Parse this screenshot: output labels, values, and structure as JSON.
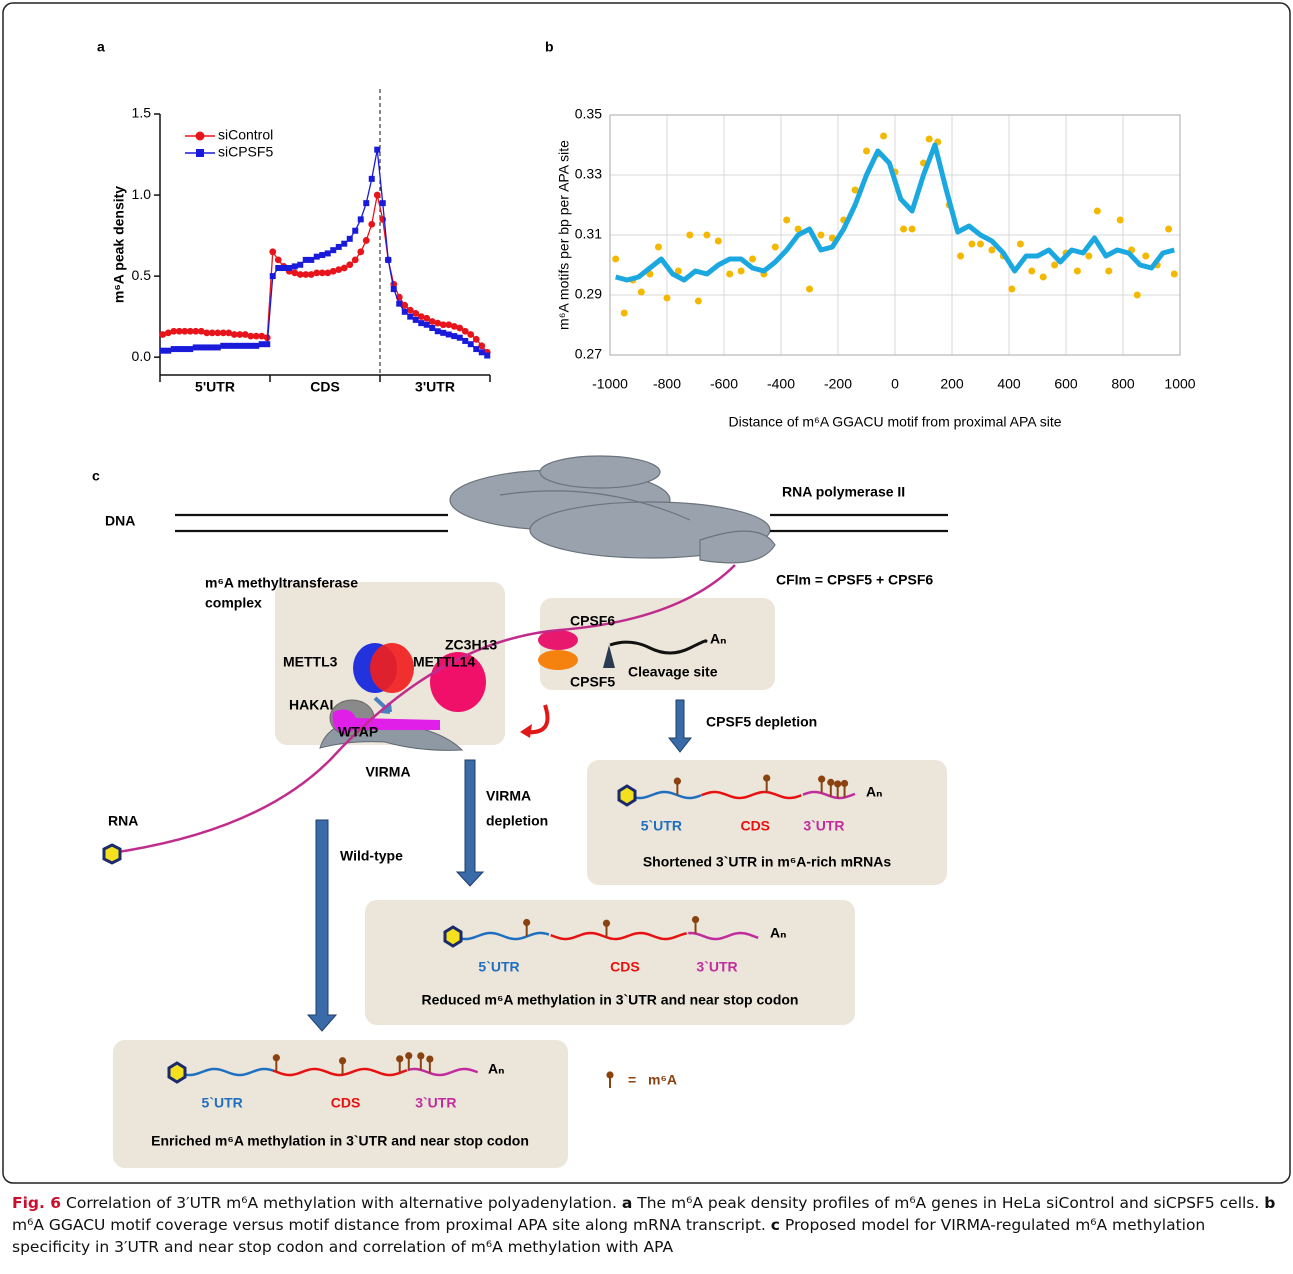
{
  "chart_data": [
    {
      "type": "line",
      "y_label": "m⁶A peak density",
      "regions": [
        "5'UTR",
        "CDS",
        "3'UTR"
      ],
      "ylim": [
        -0.11,
        1.5
      ],
      "yticks": [
        {
          "value": 0,
          "label": "0.0"
        },
        {
          "value": 0.5,
          "label": "0.5"
        },
        {
          "value": 1,
          "label": "1.0"
        },
        {
          "value": 1.5,
          "label": "1.5"
        }
      ],
      "legend": "upper left",
      "series": [
        {
          "name": "siControl",
          "color": "#e8141c",
          "marker": "circle",
          "values": [
            0.14,
            0.15,
            0.16,
            0.16,
            0.16,
            0.16,
            0.16,
            0.16,
            0.15,
            0.15,
            0.15,
            0.15,
            0.15,
            0.14,
            0.14,
            0.14,
            0.13,
            0.13,
            0.13,
            0.12,
            0.65,
            0.6,
            0.56,
            0.53,
            0.52,
            0.51,
            0.51,
            0.51,
            0.52,
            0.52,
            0.52,
            0.53,
            0.54,
            0.55,
            0.57,
            0.6,
            0.65,
            0.72,
            0.82,
            1.0,
            0.85,
            0.6,
            0.45,
            0.37,
            0.32,
            0.29,
            0.27,
            0.25,
            0.24,
            0.22,
            0.21,
            0.2,
            0.2,
            0.19,
            0.18,
            0.16,
            0.14,
            0.11,
            0.07,
            0.03
          ]
        },
        {
          "name": "siCPSF5",
          "color": "#1a1adb",
          "marker": "square",
          "values": [
            0.04,
            0.04,
            0.05,
            0.05,
            0.05,
            0.05,
            0.06,
            0.06,
            0.06,
            0.06,
            0.06,
            0.07,
            0.07,
            0.07,
            0.07,
            0.07,
            0.07,
            0.07,
            0.08,
            0.08,
            0.5,
            0.55,
            0.55,
            0.55,
            0.56,
            0.57,
            0.6,
            0.6,
            0.62,
            0.63,
            0.64,
            0.66,
            0.68,
            0.7,
            0.73,
            0.78,
            0.85,
            0.95,
            1.1,
            1.28,
            0.95,
            0.6,
            0.42,
            0.33,
            0.28,
            0.25,
            0.23,
            0.21,
            0.2,
            0.18,
            0.16,
            0.15,
            0.14,
            0.13,
            0.12,
            0.1,
            0.08,
            0.05,
            0.03,
            0.01
          ]
        }
      ]
    },
    {
      "type": "scatter",
      "x_label": "Distance of m⁶A GGACU motif from proximal APA site",
      "y_label": "m⁶A motifs per bp per APA site",
      "xlim": [
        -1000,
        1000
      ],
      "ylim": [
        0.27,
        0.35
      ],
      "xticks": [
        -1000,
        -800,
        -600,
        -400,
        -200,
        0,
        200,
        400,
        600,
        800,
        1000
      ],
      "yticks": [
        0.27,
        0.29,
        0.31,
        0.33,
        0.35
      ],
      "grid": true,
      "series": [
        {
          "color": "#f5b800",
          "style": "points",
          "x": [
            -980,
            -950,
            -920,
            -890,
            -860,
            -830,
            -800,
            -760,
            -720,
            -690,
            -660,
            -620,
            -580,
            -540,
            -500,
            -460,
            -420,
            -380,
            -340,
            -300,
            -260,
            -220,
            -180,
            -140,
            -100,
            -60,
            -40,
            0,
            30,
            60,
            100,
            120,
            150,
            190,
            230,
            270,
            300,
            340,
            380,
            410,
            440,
            480,
            520,
            560,
            600,
            640,
            680,
            710,
            750,
            790,
            830,
            850,
            880,
            920,
            960,
            980
          ],
          "values": [
            0.302,
            0.284,
            0.295,
            0.291,
            0.297,
            0.306,
            0.289,
            0.298,
            0.31,
            0.288,
            0.31,
            0.308,
            0.297,
            0.298,
            0.302,
            0.297,
            0.306,
            0.315,
            0.312,
            0.292,
            0.31,
            0.309,
            0.315,
            0.325,
            0.338,
            0.337,
            0.343,
            0.331,
            0.312,
            0.312,
            0.334,
            0.342,
            0.341,
            0.32,
            0.303,
            0.307,
            0.307,
            0.305,
            0.303,
            0.292,
            0.307,
            0.298,
            0.296,
            0.3,
            0.304,
            0.298,
            0.303,
            0.318,
            0.298,
            0.315,
            0.305,
            0.29,
            0.303,
            0.3,
            0.312,
            0.297
          ]
        },
        {
          "color": "#1ba8e0",
          "style": "line",
          "x": [
            -980,
            -940,
            -900,
            -860,
            -820,
            -780,
            -740,
            -700,
            -660,
            -620,
            -580,
            -540,
            -500,
            -460,
            -420,
            -380,
            -340,
            -300,
            -260,
            -220,
            -180,
            -140,
            -100,
            -60,
            -20,
            20,
            60,
            100,
            140,
            180,
            220,
            260,
            300,
            340,
            380,
            420,
            460,
            500,
            540,
            580,
            620,
            660,
            700,
            740,
            780,
            820,
            860,
            900,
            940,
            980
          ],
          "values": [
            0.296,
            0.295,
            0.296,
            0.299,
            0.302,
            0.297,
            0.295,
            0.298,
            0.297,
            0.3,
            0.302,
            0.302,
            0.299,
            0.298,
            0.301,
            0.305,
            0.31,
            0.312,
            0.305,
            0.306,
            0.312,
            0.32,
            0.33,
            0.338,
            0.334,
            0.322,
            0.318,
            0.33,
            0.34,
            0.325,
            0.311,
            0.313,
            0.31,
            0.308,
            0.304,
            0.298,
            0.303,
            0.303,
            0.305,
            0.301,
            0.305,
            0.304,
            0.309,
            0.303,
            0.305,
            0.304,
            0.3,
            0.299,
            0.304,
            0.305
          ]
        }
      ]
    }
  ],
  "panel_labels": [
    "a",
    "b",
    "c"
  ],
  "diagram": {
    "dna": "DNA",
    "rna": "RNA",
    "polymerase": "RNA polymerase II",
    "cfim": "CFIm = CPSF5 + CPSF6",
    "complex_title": [
      "m⁶A methyltransferase",
      "complex"
    ],
    "complex": {
      "mettl3": "METTL3",
      "mettl14": "METTL14",
      "zc3h13": "ZC3H13",
      "hakai": "HAKAI",
      "wtap": "WTAP",
      "virma": "VIRMA"
    },
    "cleavage": {
      "cpsf6": "CPSF6",
      "cpsf5": "CPSF5",
      "tail": "Aₙ",
      "site": "Cleavage site"
    },
    "arrows": {
      "cpsf5": "CPSF5 depletion",
      "virma": [
        "VIRMA",
        "depletion"
      ],
      "wild": "Wild-type"
    },
    "transcripts": [
      {
        "regions": [
          "5`UTR",
          "CDS",
          "3`UTR"
        ],
        "tail": "Aₙ",
        "caption": "Shortened 3`UTR in m⁶A-rich mRNAs"
      },
      {
        "regions": [
          "5`UTR",
          "CDS",
          "3`UTR"
        ],
        "tail": "Aₙ",
        "caption": "Reduced m⁶A methylation in 3`UTR and near stop codon"
      },
      {
        "regions": [
          "5`UTR",
          "CDS",
          "3`UTR"
        ],
        "tail": "Aₙ",
        "caption": "Enriched m⁶A methylation in 3`UTR and near stop codon"
      }
    ],
    "key": {
      "equals": "=",
      "label": "m⁶A"
    }
  },
  "caption": {
    "fig": "Fig. 6",
    "title": "Correlation of 3′UTR m⁶A methylation with alternative polyadenylation.",
    "a": "a",
    "a_text": "The m⁶A peak density profiles of m⁶A genes in HeLa siControl and siCPSF5 cells.",
    "b": "b",
    "b_text": "m⁶A GGACU motif coverage versus motif distance from proximal APA site along mRNA transcript.",
    "c": "c",
    "c_text": "Proposed model for VIRMA-regulated m⁶A methylation specificity in 3′UTR and near stop codon and correlation of m⁶A methylation with APA"
  }
}
